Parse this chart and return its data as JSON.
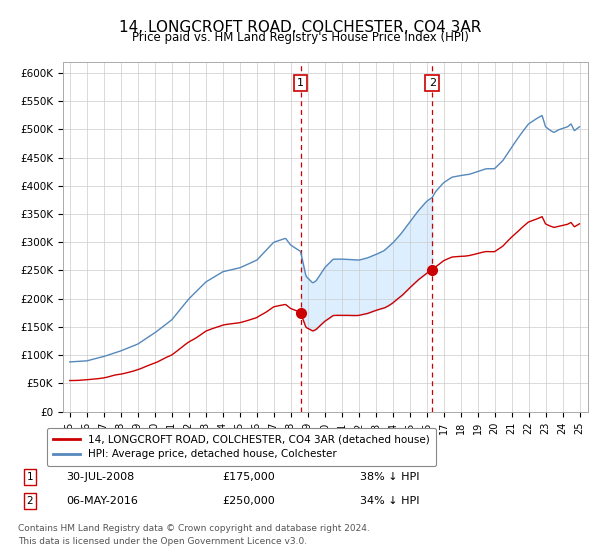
{
  "title": "14, LONGCROFT ROAD, COLCHESTER, CO4 3AR",
  "subtitle": "Price paid vs. HM Land Registry's House Price Index (HPI)",
  "ylim": [
    0,
    620000
  ],
  "yticks": [
    0,
    50000,
    100000,
    150000,
    200000,
    250000,
    300000,
    350000,
    400000,
    450000,
    500000,
    550000,
    600000
  ],
  "ytick_labels": [
    "£0",
    "£50K",
    "£100K",
    "£150K",
    "£200K",
    "£250K",
    "£300K",
    "£350K",
    "£400K",
    "£450K",
    "£500K",
    "£550K",
    "£600K"
  ],
  "hpi_color": "#5588bb",
  "price_color": "#cc0000",
  "shaded_color": "#ddeeff",
  "sale1_year": 2008.58,
  "sale2_year": 2016.34,
  "sale1_price_val": 175000,
  "sale2_price_val": 250000,
  "sale1_date": "30-JUL-2008",
  "sale1_price": "£175,000",
  "sale1_pct": "38% ↓ HPI",
  "sale2_date": "06-MAY-2016",
  "sale2_price": "£250,000",
  "sale2_pct": "34% ↓ HPI",
  "legend_label1": "14, LONGCROFT ROAD, COLCHESTER, CO4 3AR (detached house)",
  "legend_label2": "HPI: Average price, detached house, Colchester",
  "footer1": "Contains HM Land Registry data © Crown copyright and database right 2024.",
  "footer2": "This data is licensed under the Open Government Licence v3.0.",
  "x_start_year": 1995,
  "x_end_year": 2025,
  "bg_color": "#ffffff"
}
